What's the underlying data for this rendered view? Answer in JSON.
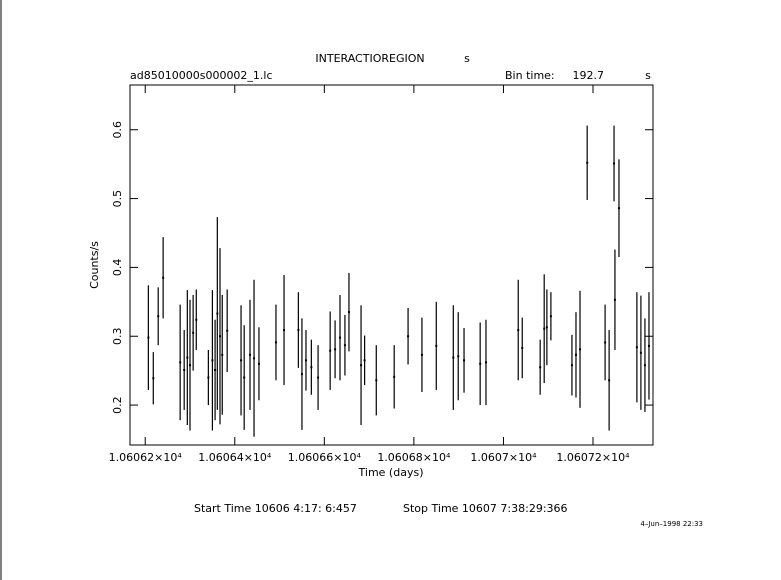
{
  "chart_data": {
    "type": "errorbar",
    "title": "INTERACTIOREGION",
    "title_suffix": "s",
    "file_name": "ad85010000s000002_1.lc",
    "bin_time_label": "Bin time:",
    "bin_time": 192.7,
    "bin_time_unit": "s",
    "x_label": "Time (days)",
    "y_label": "Counts/s",
    "start_time": "Start Time 10606  4:17: 6:457",
    "stop_time": "Stop Time 10607  7:38:29:366",
    "date_stamp": "4–Jun–1998 22:33",
    "color": "#000000",
    "xlim": [
      10606.166,
      10607.334
    ],
    "ylim": [
      0.142,
      0.665
    ],
    "xticks": [
      {
        "value": 10606.2,
        "label": "1.06062×10⁴"
      },
      {
        "value": 10606.4,
        "label": "1.06064×10⁴"
      },
      {
        "value": 10606.6,
        "label": "1.06066×10⁴"
      },
      {
        "value": 10606.8,
        "label": "1.06068×10⁴"
      },
      {
        "value": 10607.0,
        "label": "1.0607×10⁴"
      },
      {
        "value": 10607.2,
        "label": "1.06072×10⁴"
      }
    ],
    "yticks": [
      0.2,
      0.3,
      0.4,
      0.5,
      0.6
    ],
    "x": [
      10606.207,
      10606.218,
      10606.229,
      10606.24,
      10606.278,
      10606.287,
      10606.294,
      10606.3,
      10606.307,
      10606.314,
      10606.341,
      10606.35,
      10606.356,
      10606.361,
      10606.367,
      10606.372,
      10606.383,
      10606.414,
      10606.421,
      10606.434,
      10606.443,
      10606.454,
      10606.492,
      10606.51,
      10606.542,
      10606.55,
      10606.559,
      10606.571,
      10606.586,
      10606.613,
      10606.624,
      10606.635,
      10606.646,
      10606.655,
      10606.682,
      10606.69,
      10606.716,
      10606.756,
      10606.787,
      10606.818,
      10606.85,
      10606.888,
      10606.899,
      10606.912,
      10606.948,
      10606.961,
      10607.033,
      10607.042,
      10607.082,
      10607.091,
      10607.097,
      10607.106,
      10607.153,
      10607.162,
      10607.171,
      10607.187,
      10607.227,
      10607.236,
      10607.247,
      10607.249,
      10607.258,
      10607.298,
      10607.307,
      10607.316,
      10607.325
    ],
    "values": [
      0.298,
      0.239,
      0.329,
      0.385,
      0.262,
      0.251,
      0.269,
      0.258,
      0.305,
      0.324,
      0.24,
      0.265,
      0.251,
      0.333,
      0.3,
      0.273,
      0.308,
      0.265,
      0.24,
      0.273,
      0.268,
      0.26,
      0.291,
      0.309,
      0.309,
      0.245,
      0.265,
      0.255,
      0.24,
      0.279,
      0.281,
      0.298,
      0.287,
      0.335,
      0.258,
      0.265,
      0.236,
      0.241,
      0.3,
      0.273,
      0.286,
      0.269,
      0.271,
      0.265,
      0.26,
      0.262,
      0.309,
      0.283,
      0.255,
      0.311,
      0.313,
      0.329,
      0.258,
      0.273,
      0.281,
      0.552,
      0.291,
      0.236,
      0.551,
      0.353,
      0.486,
      0.284,
      0.276,
      0.258,
      0.286
    ],
    "errors": [
      0.076,
      0.038,
      0.042,
      0.059,
      0.084,
      0.058,
      0.098,
      0.095,
      0.055,
      0.044,
      0.04,
      0.102,
      0.073,
      0.14,
      0.128,
      0.087,
      0.06,
      0.08,
      0.076,
      0.08,
      0.114,
      0.053,
      0.055,
      0.08,
      0.055,
      0.081,
      0.044,
      0.04,
      0.047,
      0.057,
      0.042,
      0.062,
      0.044,
      0.057,
      0.087,
      0.036,
      0.051,
      0.046,
      0.041,
      0.054,
      0.064,
      0.076,
      0.064,
      0.047,
      0.06,
      0.062,
      0.073,
      0.044,
      0.04,
      0.079,
      0.055,
      0.035,
      0.044,
      0.062,
      0.085,
      0.054,
      0.055,
      0.073,
      0.055,
      0.073,
      0.071,
      0.08,
      0.083,
      0.068,
      0.078
    ]
  }
}
